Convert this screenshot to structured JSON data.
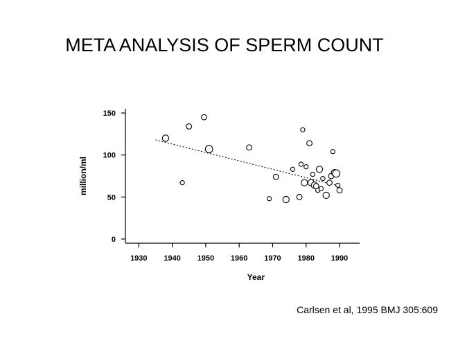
{
  "slide": {
    "title": "META ANALYSIS OF SPERM COUNT",
    "citation": "Carlsen et al,  1995  BMJ 305:609"
  },
  "chart_data": {
    "type": "scatter",
    "title": "META ANALYSIS OF SPERM COUNT",
    "xlabel": "Year",
    "ylabel": "million/ml",
    "xlim": [
      1926,
      1996
    ],
    "ylim": [
      -5,
      155
    ],
    "xticks": [
      1930,
      1940,
      1950,
      1960,
      1970,
      1980,
      1990
    ],
    "yticks": [
      0,
      50,
      100,
      150
    ],
    "grid": false,
    "marker_fill": "#ffffff",
    "marker_stroke": "#000000",
    "series": [
      {
        "x": [
          1938,
          1943,
          1945,
          1949.5,
          1951,
          1963,
          1969,
          1971,
          1974,
          1976,
          1978,
          1978.5,
          1979,
          1979.5,
          1980,
          1981,
          1981.5,
          1982,
          1982.5,
          1983,
          1983.5,
          1984,
          1984.5,
          1985,
          1986,
          1987,
          1987.5,
          1988,
          1988.5,
          1989,
          1989.5,
          1990
        ],
        "y": [
          120,
          67,
          134,
          145,
          107,
          109,
          48,
          74,
          47,
          83,
          50,
          89,
          130,
          67,
          86,
          114,
          67,
          77,
          64,
          63,
          58,
          83,
          60,
          72,
          52,
          67,
          75,
          104,
          79,
          78,
          64,
          58
        ],
        "size": [
          2,
          1,
          1.5,
          1.5,
          2.5,
          1.5,
          1,
          1.5,
          2,
          1,
          1.5,
          1,
          1,
          2,
          1,
          1.5,
          2,
          1,
          2,
          1.5,
          1,
          2,
          1,
          1,
          2,
          1.5,
          1.5,
          1,
          2,
          2.5,
          1,
          1.5
        ]
      }
    ],
    "trendline": {
      "style": "dotted",
      "x": [
        1935,
        1990
      ],
      "y": [
        118,
        63
      ]
    }
  }
}
